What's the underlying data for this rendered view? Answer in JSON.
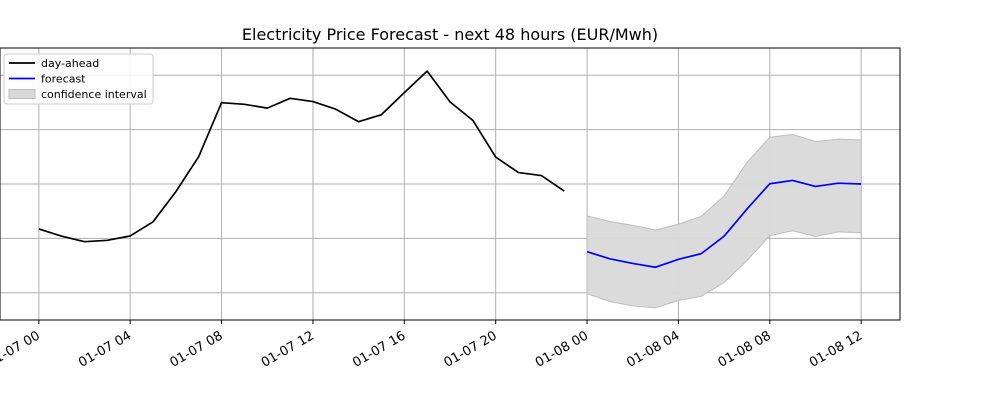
{
  "chart_data": {
    "type": "line",
    "title": "Electricity Price Forecast - next 48 hours (EUR/Mwh)",
    "xlabel": "",
    "ylabel": "",
    "x_unit": "hour",
    "x_tick_labels": [
      "01-07 00",
      "01-07 04",
      "01-07 08",
      "01-07 12",
      "01-07 16",
      "01-07 20",
      "01-08 00",
      "01-08 04",
      "01-08 08",
      "01-08 12"
    ],
    "x_tick_hours": [
      0,
      4,
      8,
      12,
      16,
      20,
      24,
      28,
      32,
      36
    ],
    "xlim": [
      -1.7,
      37.7
    ],
    "ylim": [
      0,
      100
    ],
    "y_gridlines": [
      10,
      30,
      50,
      70,
      90
    ],
    "y_tick_labels_visible": false,
    "grid": true,
    "legend_position": "top-left",
    "series": [
      {
        "name": "day-ahead",
        "color": "#000000",
        "x": [
          0,
          1,
          2,
          3,
          4,
          5,
          6,
          7,
          8,
          9,
          10,
          11,
          12,
          13,
          14,
          15,
          16,
          17,
          18,
          19,
          20,
          21,
          22,
          23
        ],
        "values": [
          33.5,
          30.8,
          28.8,
          29.3,
          30.9,
          36.1,
          47.2,
          60.1,
          79.9,
          79.3,
          77.9,
          81.5,
          80.3,
          77.5,
          72.9,
          75.5,
          83.6,
          91.5,
          80.2,
          73.4,
          59.9,
          54.2,
          53.1,
          47.4
        ]
      },
      {
        "name": "forecast",
        "color": "#0000ff",
        "x": [
          24,
          25,
          26,
          27,
          28,
          29,
          30,
          31,
          32,
          33,
          34,
          35,
          36
        ],
        "values": [
          25.1,
          22.5,
          20.8,
          19.4,
          22.3,
          24.4,
          30.8,
          40.8,
          50.1,
          51.3,
          49.1,
          50.3,
          50.0
        ]
      }
    ],
    "confidence_interval": {
      "name": "confidence interval",
      "color": "#d9d9d9",
      "x": [
        24,
        25,
        26,
        27,
        28,
        29,
        30,
        31,
        32,
        33,
        34,
        35,
        36
      ],
      "upper": [
        38.3,
        36.2,
        34.8,
        33.1,
        35.2,
        38.1,
        45.6,
        57.9,
        67.2,
        68.2,
        65.6,
        66.5,
        66.2
      ],
      "lower": [
        9.7,
        6.8,
        5.2,
        4.5,
        7.2,
        8.7,
        13.8,
        21.8,
        31.0,
        32.8,
        30.7,
        32.4,
        32.1
      ]
    }
  }
}
